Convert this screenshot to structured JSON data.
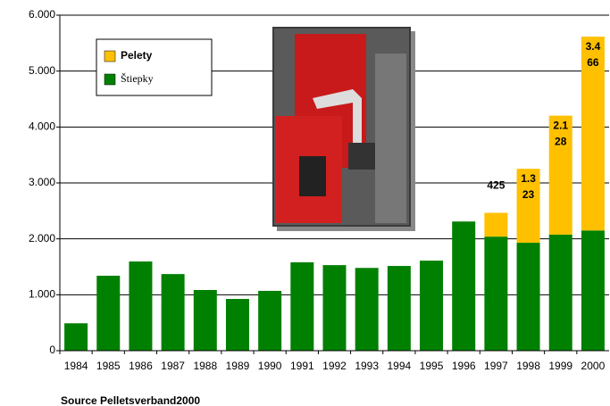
{
  "chart_data": {
    "type": "stacked-bar",
    "categories": [
      "1984",
      "1985",
      "1986",
      "1987",
      "1988",
      "1989",
      "1990",
      "1991",
      "1992",
      "1993",
      "1994",
      "1995",
      "1996",
      "1997",
      "1998",
      "1999",
      "2000"
    ],
    "series": [
      {
        "name": "Štiepky",
        "color": "#008000",
        "values": [
          490,
          1340,
          1595,
          1370,
          1085,
          925,
          1070,
          1580,
          1530,
          1480,
          1515,
          1610,
          2310,
          2040,
          1930,
          2075,
          2150
        ]
      },
      {
        "name": "Pelety",
        "color": "#ffc000",
        "values": [
          null,
          null,
          null,
          null,
          null,
          null,
          null,
          null,
          null,
          null,
          null,
          null,
          null,
          425,
          1323,
          2128,
          3466
        ],
        "value_labels": [
          null,
          null,
          null,
          null,
          null,
          null,
          null,
          null,
          null,
          null,
          null,
          null,
          null,
          "425",
          "1.323",
          "2.128",
          "3.466"
        ]
      }
    ],
    "ylim": [
      0,
      6000
    ],
    "yticks": [
      0,
      {
        "value": 1000,
        "label": "1.000"
      },
      {
        "value": 2000,
        "label": "2.000"
      },
      {
        "value": 3000,
        "label": "3.000"
      },
      {
        "value": 4000,
        "label": "4.000"
      },
      {
        "value": 5000,
        "label": "5.000"
      },
      {
        "value": 6000,
        "label": "6.000"
      }
    ],
    "grid": true,
    "source": "Source Pelletsverband2000"
  }
}
